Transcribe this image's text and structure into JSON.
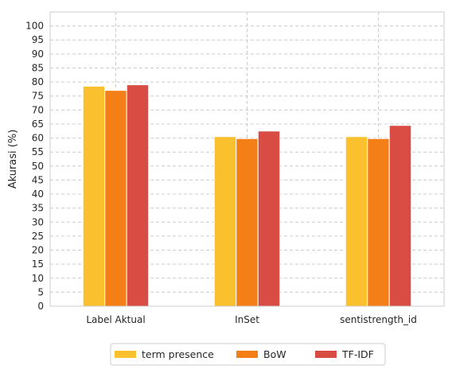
{
  "chart_data": {
    "type": "bar",
    "title": "",
    "xlabel": "",
    "ylabel": "Akurasi (%)",
    "categories": [
      "Label Aktual",
      "InSet",
      "sentistrength_id"
    ],
    "series": [
      {
        "name": "term presence",
        "values": [
          78.5,
          60.5,
          60.5
        ],
        "color": "#fbc02d"
      },
      {
        "name": "BoW",
        "values": [
          77.0,
          59.8,
          59.8
        ],
        "color": "#f57f17"
      },
      {
        "name": "TF-IDF",
        "values": [
          79.0,
          62.5,
          64.5
        ],
        "color": "#d84c43"
      }
    ],
    "ylim": [
      0,
      105
    ],
    "yticks": [
      0,
      5,
      10,
      15,
      20,
      25,
      30,
      35,
      40,
      45,
      50,
      55,
      60,
      65,
      70,
      75,
      80,
      85,
      90,
      95,
      100
    ],
    "grid": true,
    "legend_position": "bottom-center"
  }
}
